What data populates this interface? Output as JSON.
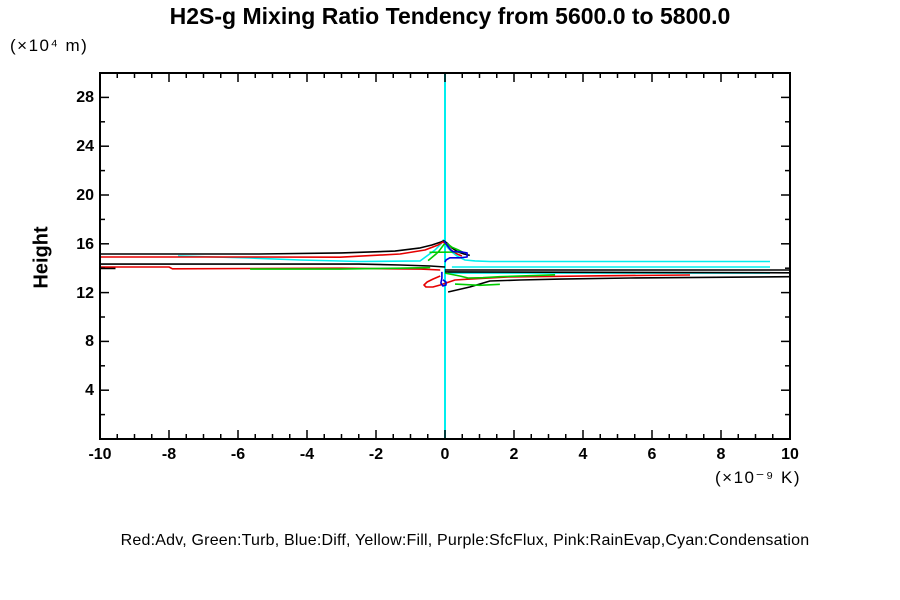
{
  "title": "H2S-g Mixing Ratio Tendency from 5600.0 to 5800.0",
  "legend_text": "Red:Adv, Green:Turb, Blue:Diff, Yellow:Fill, Purple:SfcFlux, Pink:RainEvap,Cyan:Condensation",
  "colors": {
    "red": "#e60000",
    "green": "#00cc00",
    "blue": "#0000dd",
    "cyan": "#00eeee",
    "black": "#000000",
    "axis": "#000000"
  },
  "chart_data": {
    "type": "line",
    "title": "H2S-g Mixing Ratio Tendency from 5600.0 to 5800.0",
    "xlabel_unit": "(×10⁻⁹ K)",
    "ylabel": "Height",
    "ylabel_unit": "(×10⁴ m)",
    "grid": false,
    "x_axis": {
      "min": -10,
      "max": 10,
      "major_step": 2,
      "minor_step": 0.5,
      "tick_values": [
        -10,
        -8,
        -6,
        -4,
        -2,
        0,
        2,
        4,
        6,
        8,
        10
      ],
      "tick_labels": [
        "-10",
        "-8",
        "-6",
        "-4",
        "-2",
        "0",
        "2",
        "4",
        "6",
        "8",
        "10"
      ]
    },
    "y_axis": {
      "min": 0,
      "max": 30,
      "major_step": 4,
      "minor_step": 2,
      "tick_values": [
        4,
        8,
        12,
        16,
        20,
        24,
        28
      ],
      "tick_labels": [
        "4",
        "8",
        "12",
        "16",
        "20",
        "24",
        "28"
      ]
    },
    "legend_mapping": [
      {
        "color_name": "Red",
        "meaning": "Adv"
      },
      {
        "color_name": "Green",
        "meaning": "Turb"
      },
      {
        "color_name": "Blue",
        "meaning": "Diff"
      },
      {
        "color_name": "Yellow",
        "meaning": "Fill"
      },
      {
        "color_name": "Purple",
        "meaning": "SfcFlux"
      },
      {
        "color_name": "Pink",
        "meaning": "RainEvap"
      },
      {
        "color_name": "Cyan",
        "meaning": "Condensation"
      }
    ],
    "series": [
      {
        "name": "condensation-zero-line",
        "color": "cyan",
        "width": 2,
        "points": [
          [
            0,
            0
          ],
          [
            0,
            30
          ]
        ]
      },
      {
        "name": "condensation-profile",
        "color": "cyan",
        "width": 1.6,
        "points": [
          [
            -7.74,
            15.0
          ],
          [
            -5.65,
            14.84
          ],
          [
            -4.2,
            14.67
          ],
          [
            -2.46,
            14.55
          ],
          [
            -0.72,
            14.6
          ],
          [
            -0.29,
            15.49
          ],
          [
            -0.12,
            15.98
          ],
          [
            -0.05,
            16.3
          ],
          [
            0.06,
            15.74
          ],
          [
            0.2,
            15.33
          ],
          [
            0.35,
            15.0
          ],
          [
            0.58,
            14.67
          ],
          [
            0.87,
            14.6
          ],
          [
            1.3,
            14.55
          ],
          [
            9.42,
            14.55
          ]
        ]
      },
      {
        "name": "condensation-band-2",
        "color": "cyan",
        "width": 1.6,
        "points": [
          [
            0.2,
            14.1
          ],
          [
            9.42,
            14.1
          ]
        ]
      },
      {
        "name": "condensation-band-3",
        "color": "cyan",
        "width": 1.6,
        "points": [
          [
            0.09,
            13.6
          ],
          [
            9.42,
            13.6
          ]
        ]
      },
      {
        "name": "total-top",
        "color": "black",
        "width": 1.6,
        "points": [
          [
            -10,
            15.16
          ],
          [
            -5.4,
            15.16
          ],
          [
            -3,
            15.25
          ],
          [
            -1.45,
            15.4
          ],
          [
            -0.72,
            15.66
          ],
          [
            -0.38,
            15.9
          ],
          [
            -0.12,
            16.15
          ],
          [
            -0.03,
            16.25
          ],
          [
            0.06,
            16.06
          ],
          [
            0.2,
            15.66
          ],
          [
            0.38,
            15.33
          ],
          [
            0.55,
            15.16
          ],
          [
            0.72,
            15.05
          ]
        ]
      },
      {
        "name": "total-mid",
        "color": "black",
        "width": 1.6,
        "points": [
          [
            -10,
            14.34
          ],
          [
            -2.5,
            14.34
          ],
          [
            -1.3,
            14.26
          ],
          [
            -0.43,
            14.18
          ],
          [
            0,
            14.1
          ]
        ]
      },
      {
        "name": "total-band-1",
        "color": "black",
        "width": 1.6,
        "points": [
          [
            0,
            13.85
          ],
          [
            10,
            13.85
          ]
        ]
      },
      {
        "name": "total-band-2",
        "color": "black",
        "width": 1.6,
        "points": [
          [
            0,
            13.7
          ],
          [
            10,
            13.62
          ]
        ]
      },
      {
        "name": "total-diagonal",
        "color": "black",
        "width": 1.6,
        "points": [
          [
            0.09,
            12.05
          ],
          [
            0.72,
            12.46
          ],
          [
            1.3,
            12.95
          ],
          [
            2.17,
            13.03
          ],
          [
            3.33,
            13.11
          ],
          [
            5.36,
            13.2
          ],
          [
            10,
            13.3
          ]
        ]
      },
      {
        "name": "total-left-stub",
        "color": "black",
        "width": 2.5,
        "points": [
          [
            -10,
            14.02
          ],
          [
            -9.55,
            14.02
          ]
        ]
      },
      {
        "name": "adv-top",
        "color": "red",
        "width": 1.6,
        "points": [
          [
            -10,
            14.92
          ],
          [
            -5.65,
            14.92
          ],
          [
            -3.04,
            14.9
          ],
          [
            -1.3,
            15.16
          ],
          [
            -0.58,
            15.49
          ],
          [
            -0.2,
            15.9
          ],
          [
            -0.06,
            16.15
          ],
          [
            0.03,
            15.98
          ],
          [
            0.17,
            15.49
          ],
          [
            0.35,
            15.16
          ],
          [
            0.49,
            15.0
          ]
        ]
      },
      {
        "name": "adv-mid",
        "color": "red",
        "width": 1.6,
        "points": [
          [
            -10,
            14.1
          ],
          [
            -8,
            14.1
          ],
          [
            -7.9,
            13.95
          ],
          [
            -3,
            14.0
          ],
          [
            -0.7,
            13.93
          ],
          [
            -0.14,
            13.85
          ]
        ]
      },
      {
        "name": "adv-hook",
        "color": "red",
        "width": 1.6,
        "points": [
          [
            -0.14,
            13.36
          ],
          [
            -0.35,
            13.11
          ],
          [
            -0.52,
            12.87
          ],
          [
            -0.61,
            12.62
          ],
          [
            -0.55,
            12.46
          ],
          [
            -0.35,
            12.46
          ],
          [
            -0.14,
            12.62
          ],
          [
            0.03,
            12.79
          ],
          [
            0.29,
            13.03
          ],
          [
            0.72,
            13.11
          ],
          [
            1.83,
            13.28
          ],
          [
            4.49,
            13.38
          ],
          [
            7.1,
            13.44
          ]
        ]
      },
      {
        "name": "turb-left",
        "color": "green",
        "width": 1.6,
        "points": [
          [
            -5.65,
            13.93
          ],
          [
            -3.04,
            13.93
          ],
          [
            -1.3,
            14.0
          ],
          [
            -0.43,
            14.05
          ]
        ]
      },
      {
        "name": "turb-peak",
        "color": "green",
        "width": 1.6,
        "points": [
          [
            -0.49,
            14.62
          ],
          [
            -0.2,
            15.3
          ],
          [
            -0.03,
            15.95
          ],
          [
            0.06,
            16.02
          ],
          [
            0.2,
            15.72
          ],
          [
            0.38,
            15.5
          ],
          [
            0.5,
            15.33
          ],
          [
            -0.45,
            15.3
          ]
        ]
      },
      {
        "name": "turb-right",
        "color": "green",
        "width": 1.6,
        "points": [
          [
            0,
            13.6
          ],
          [
            0.43,
            13.36
          ],
          [
            0.67,
            13.2
          ],
          [
            1.1,
            13.22
          ],
          [
            1.59,
            13.3
          ],
          [
            3.19,
            13.46
          ]
        ]
      },
      {
        "name": "turb-low",
        "color": "green",
        "width": 1.6,
        "points": [
          [
            0.29,
            12.7
          ],
          [
            1.01,
            12.6
          ],
          [
            1.59,
            12.68
          ]
        ]
      },
      {
        "name": "diff-peak",
        "color": "blue",
        "width": 1.6,
        "points": [
          [
            -0.03,
            16.23
          ],
          [
            0.06,
            15.9
          ],
          [
            0.14,
            15.57
          ],
          [
            0.23,
            15.35
          ],
          [
            0.43,
            15.35
          ],
          [
            0.64,
            15.25
          ],
          [
            0.64,
            14.92
          ],
          [
            0.43,
            14.85
          ],
          [
            0.14,
            14.85
          ],
          [
            0.03,
            14.67
          ],
          [
            0,
            14.5
          ]
        ]
      },
      {
        "name": "diff-dip",
        "color": "blue",
        "width": 1.6,
        "points": [
          [
            -0.09,
            13.7
          ],
          [
            -0.09,
            13.2
          ],
          [
            -0.12,
            12.79
          ],
          [
            -0.06,
            12.54
          ],
          [
            0.03,
            12.62
          ],
          [
            0.03,
            12.87
          ],
          [
            -0.06,
            13.05
          ]
        ]
      }
    ]
  }
}
